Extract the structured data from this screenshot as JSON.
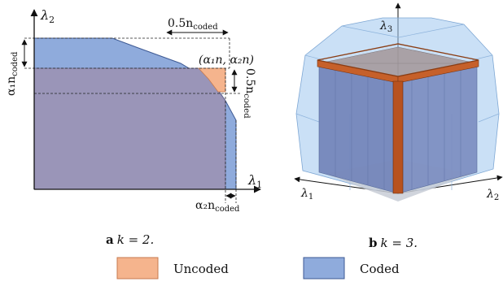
{
  "panel_a": {
    "y_axis": "λ",
    "y_axis_sub": "2",
    "x_axis": "λ",
    "x_axis_sub": "1",
    "top_gap": "0.5n",
    "top_gap_sub": "coded",
    "corner_point": "(α₁n, α₂n)",
    "right_gap": "0.5n",
    "right_gap_sub": "coded",
    "left_dim": "α₁n",
    "left_dim_sub": "coded",
    "bottom_dim": "α₂n",
    "bottom_dim_sub": "coded",
    "caption_letter": "a",
    "caption_text": "k = 2."
  },
  "panel_b": {
    "axis_top": "λ",
    "axis_top_sub": "3",
    "axis_left": "λ",
    "axis_left_sub": "1",
    "axis_right": "λ",
    "axis_right_sub": "2",
    "caption_letter": "b",
    "caption_text": "k = 3."
  },
  "legend": {
    "uncoded_label": "Uncoded",
    "coded_label": "Coded",
    "uncoded_color": "#f5b48d",
    "coded_color": "#8fabdc"
  },
  "colors": {
    "coded_fill": "#8fabdc",
    "overlap_fill": "#9a95b8",
    "uncoded_fill": "#f5b48d",
    "edge_orange": "#b8521f",
    "light_blue": "#9ec7ee"
  }
}
